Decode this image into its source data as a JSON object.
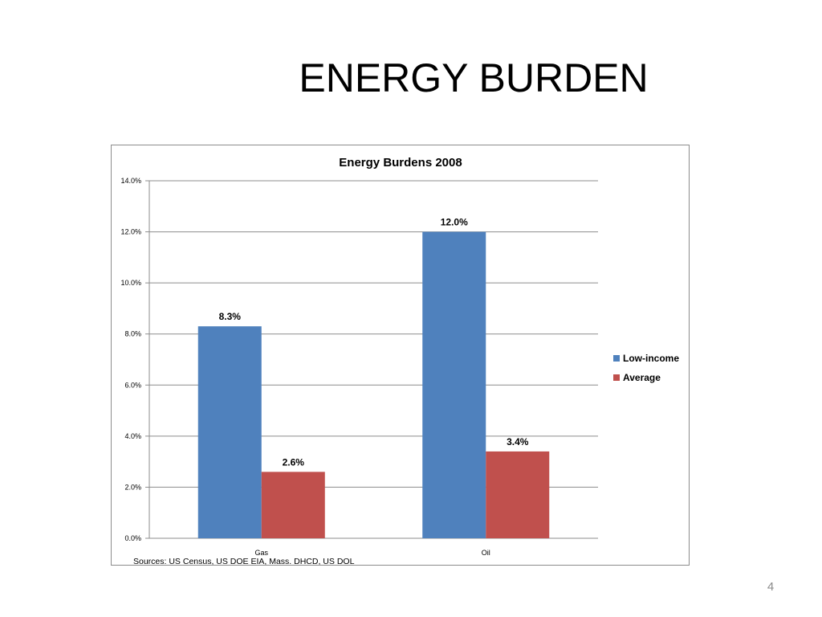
{
  "slide": {
    "title": "ENERGY BURDEN",
    "page_number": "4"
  },
  "chart_data": {
    "type": "bar",
    "title": "Energy Burdens 2008",
    "categories": [
      "Gas",
      "Oil"
    ],
    "series": [
      {
        "name": "Low-income",
        "color": "#4f81bd",
        "values": [
          8.3,
          12.0
        ],
        "labels": [
          "8.3%",
          "12.0%"
        ]
      },
      {
        "name": "Average",
        "color": "#c0504d",
        "values": [
          2.6,
          3.4
        ],
        "labels": [
          "2.6%",
          "3.4%"
        ]
      }
    ],
    "ylim": [
      0,
      14
    ],
    "yticks": [
      0,
      2,
      4,
      6,
      8,
      10,
      12,
      14
    ],
    "ytick_labels": [
      "0.0%",
      "2.0%",
      "4.0%",
      "6.0%",
      "8.0%",
      "10.0%",
      "12.0%",
      "14.0%"
    ],
    "grid": true,
    "legend_position": "right",
    "source_note": "Sources: US Census, US DOE EIA, Mass. DHCD, US DOL"
  }
}
